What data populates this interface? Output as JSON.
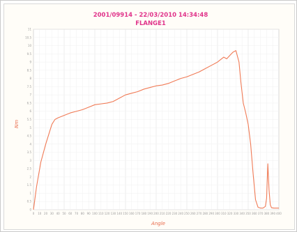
{
  "chart_data": {
    "type": "line",
    "title": "2001/09914 - 22/03/2010 14:34:48",
    "subtitle": "FLANGE1",
    "xlabel": "Angle",
    "ylabel": "Nm",
    "xlim": [
      0,
      400
    ],
    "ylim": [
      0,
      11
    ],
    "xticks": [
      0,
      10,
      20,
      30,
      40,
      50,
      60,
      70,
      80,
      90,
      100,
      110,
      120,
      130,
      140,
      150,
      160,
      170,
      180,
      190,
      200,
      210,
      220,
      230,
      240,
      250,
      260,
      270,
      280,
      290,
      300,
      310,
      320,
      330,
      340,
      350,
      360,
      370,
      380,
      390,
      400
    ],
    "yticks": [
      0,
      0.5,
      1,
      1.5,
      2,
      2.5,
      3,
      3.5,
      4,
      4.5,
      5,
      5.5,
      6,
      6.5,
      7,
      7.5,
      8,
      8.5,
      9,
      9.5,
      10,
      10.5,
      11
    ],
    "grid": true,
    "line_color": "#f07a55",
    "title_color": "#e0338a",
    "series": [
      {
        "x": [
          0,
          5,
          12,
          20,
          25,
          30,
          35,
          40,
          50,
          60,
          70,
          80,
          90,
          100,
          110,
          120,
          130,
          140,
          150,
          160,
          170,
          180,
          190,
          200,
          210,
          220,
          230,
          240,
          250,
          260,
          270,
          280,
          290,
          300,
          305,
          310,
          315,
          320,
          325,
          330,
          335,
          338,
          342,
          346,
          350,
          354,
          358,
          362,
          366,
          370,
          374,
          378,
          380,
          382,
          384,
          386,
          388,
          392,
          396,
          400
        ],
        "y": [
          0,
          1.4,
          2.9,
          4.0,
          4.6,
          5.2,
          5.5,
          5.6,
          5.75,
          5.9,
          6.0,
          6.1,
          6.25,
          6.4,
          6.45,
          6.5,
          6.6,
          6.8,
          7.0,
          7.1,
          7.2,
          7.35,
          7.45,
          7.55,
          7.6,
          7.7,
          7.85,
          8.0,
          8.1,
          8.25,
          8.4,
          8.6,
          8.8,
          9.0,
          9.15,
          9.3,
          9.2,
          9.4,
          9.6,
          9.7,
          9.0,
          7.8,
          6.5,
          5.9,
          5.2,
          4.0,
          2.2,
          0.6,
          0.15,
          0.1,
          0.1,
          0.2,
          0.7,
          2.8,
          1.2,
          0.3,
          0.12,
          0.1,
          0.1,
          0.1
        ]
      }
    ]
  }
}
